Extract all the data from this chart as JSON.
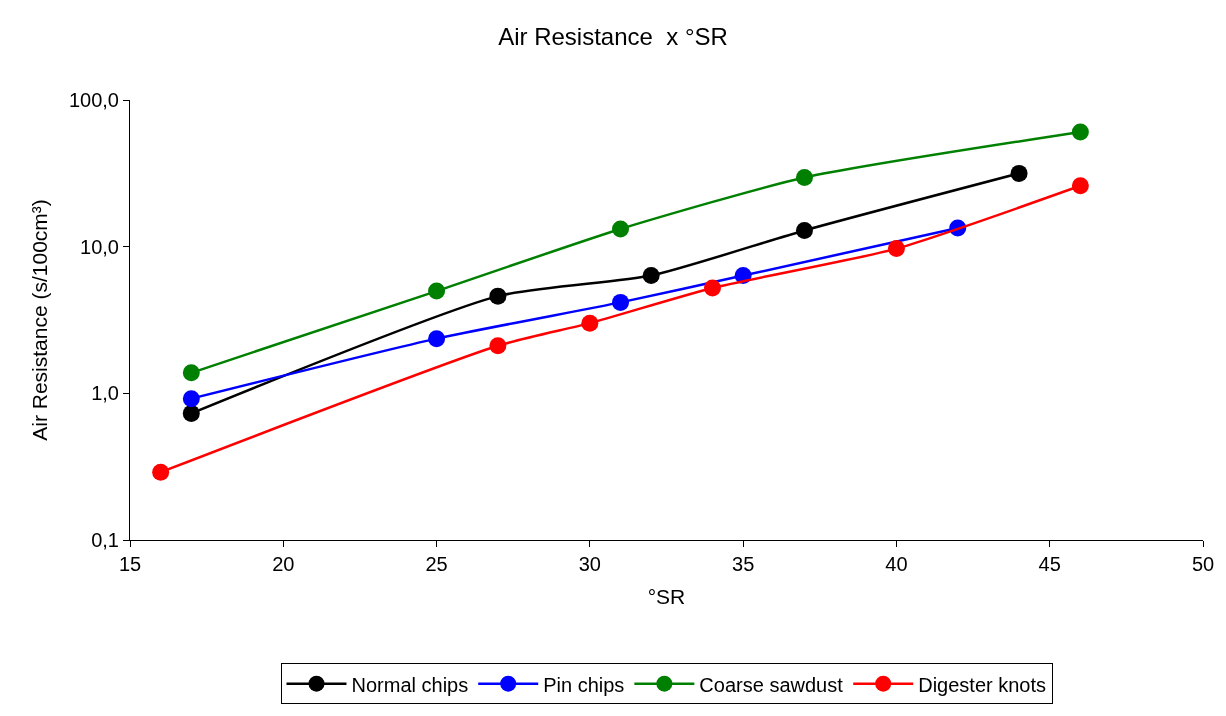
{
  "chart_data": {
    "type": "line",
    "title": "Air Resistance  x °SR",
    "xlabel": "°SR",
    "ylabel": "Air Resistance (s/100cm³)",
    "log": "y",
    "legend": "bottom",
    "marker": "circle",
    "line_style": "solid",
    "xlim": [
      15,
      50
    ],
    "xticks": [
      15,
      20,
      25,
      30,
      35,
      40,
      45,
      50
    ],
    "ylim": [
      0.1,
      100
    ],
    "yticks": [
      {
        "value": 0.1,
        "label": "0,1"
      },
      {
        "value": 1,
        "label": "1,0"
      },
      {
        "value": 10,
        "label": "10,0"
      },
      {
        "value": 100,
        "label": "100,0"
      }
    ],
    "series": [
      {
        "name": "Normal chips",
        "color": "#000000",
        "x": [
          17,
          27,
          32,
          37,
          44
        ],
        "values": [
          0.73,
          4.6,
          6.35,
          12.9,
          31.6
        ]
      },
      {
        "name": "Pin chips",
        "color": "#0000ff",
        "x": [
          17,
          25,
          31,
          35,
          42
        ],
        "values": [
          0.92,
          2.36,
          4.17,
          6.35,
          13.4
        ]
      },
      {
        "name": "Coarse sawdust",
        "color": "#008000",
        "x": [
          17,
          25,
          31,
          37,
          46
        ],
        "values": [
          1.38,
          4.98,
          13.2,
          29.6,
          60.5
        ]
      },
      {
        "name": "Digester knots",
        "color": "#ff0000",
        "x": [
          16,
          27,
          30,
          34,
          40,
          46
        ],
        "values": [
          0.29,
          2.11,
          3.01,
          5.23,
          9.7,
          26
        ]
      }
    ]
  }
}
